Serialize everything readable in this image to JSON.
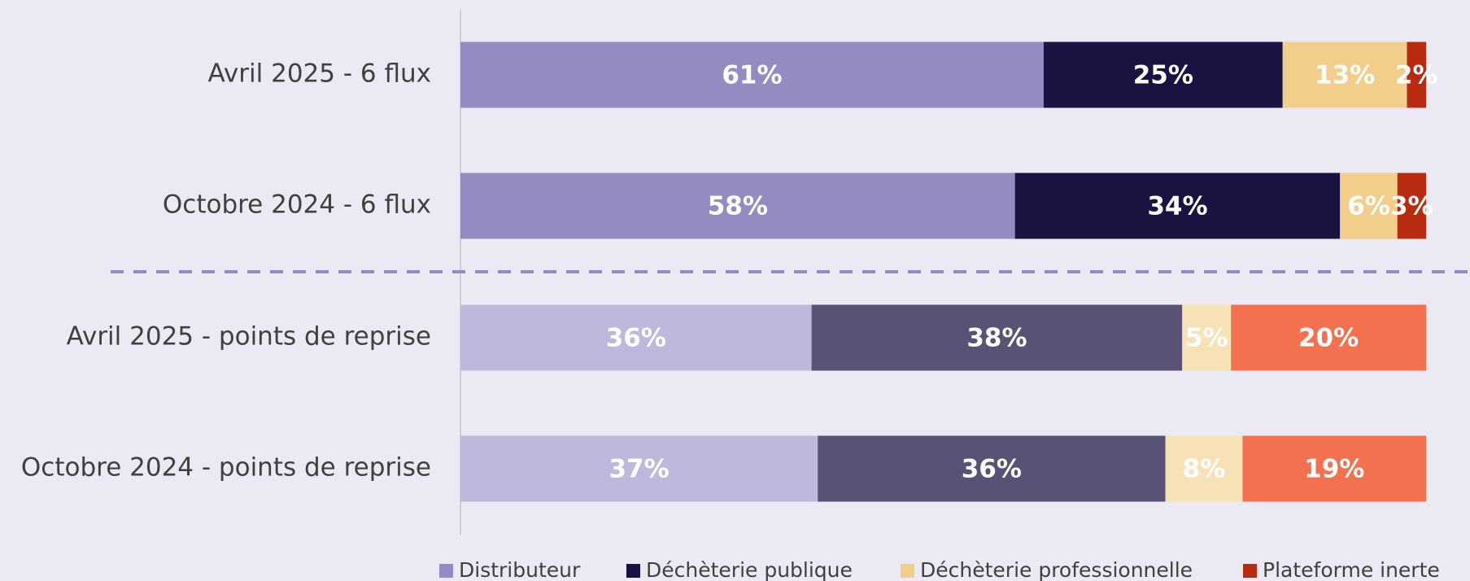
{
  "chart_data": {
    "type": "stacked100_barh",
    "categories": [
      "Avril 2025 - 6 flux",
      "Octobre 2024 - 6 flux",
      "Avril 2025 - points de reprise",
      "Octobre 2024 - points de reprise"
    ],
    "series": [
      {
        "name": "Distributeur",
        "color": "#938cc3",
        "colors": [
          "#938cc3",
          "#938cc3",
          "#bdb8dc",
          "#bdb8dc"
        ],
        "values": [
          61,
          58,
          36,
          37
        ],
        "value_labels": [
          "61%",
          "58%",
          "36%",
          "37%"
        ]
      },
      {
        "name": "Déchèterie publique",
        "color": "#1a1240",
        "colors": [
          "#1a1240",
          "#1a1240",
          "#585275",
          "#585275"
        ],
        "values": [
          25,
          34,
          38,
          36
        ],
        "value_labels": [
          "25%",
          "34%",
          "38%",
          "36%"
        ]
      },
      {
        "name": "Déchèterie professionnelle",
        "color": "#f3cd8a",
        "colors": [
          "#f3cd8a",
          "#f3cd8a",
          "#f7e2b5",
          "#f7e2b5"
        ],
        "values": [
          13,
          6,
          5,
          8
        ],
        "value_labels": [
          "13%",
          "6%",
          "5%",
          "8%"
        ]
      },
      {
        "name": "Plateforme inerte",
        "color": "#b92b10",
        "colors": [
          "#b92b10",
          "#b92b10",
          "#f4714f",
          "#f4714f"
        ],
        "values": [
          2,
          3,
          20,
          19
        ],
        "value_labels": [
          "2%",
          "3%",
          "20%",
          "19%"
        ]
      }
    ],
    "legend": "bottom"
  }
}
